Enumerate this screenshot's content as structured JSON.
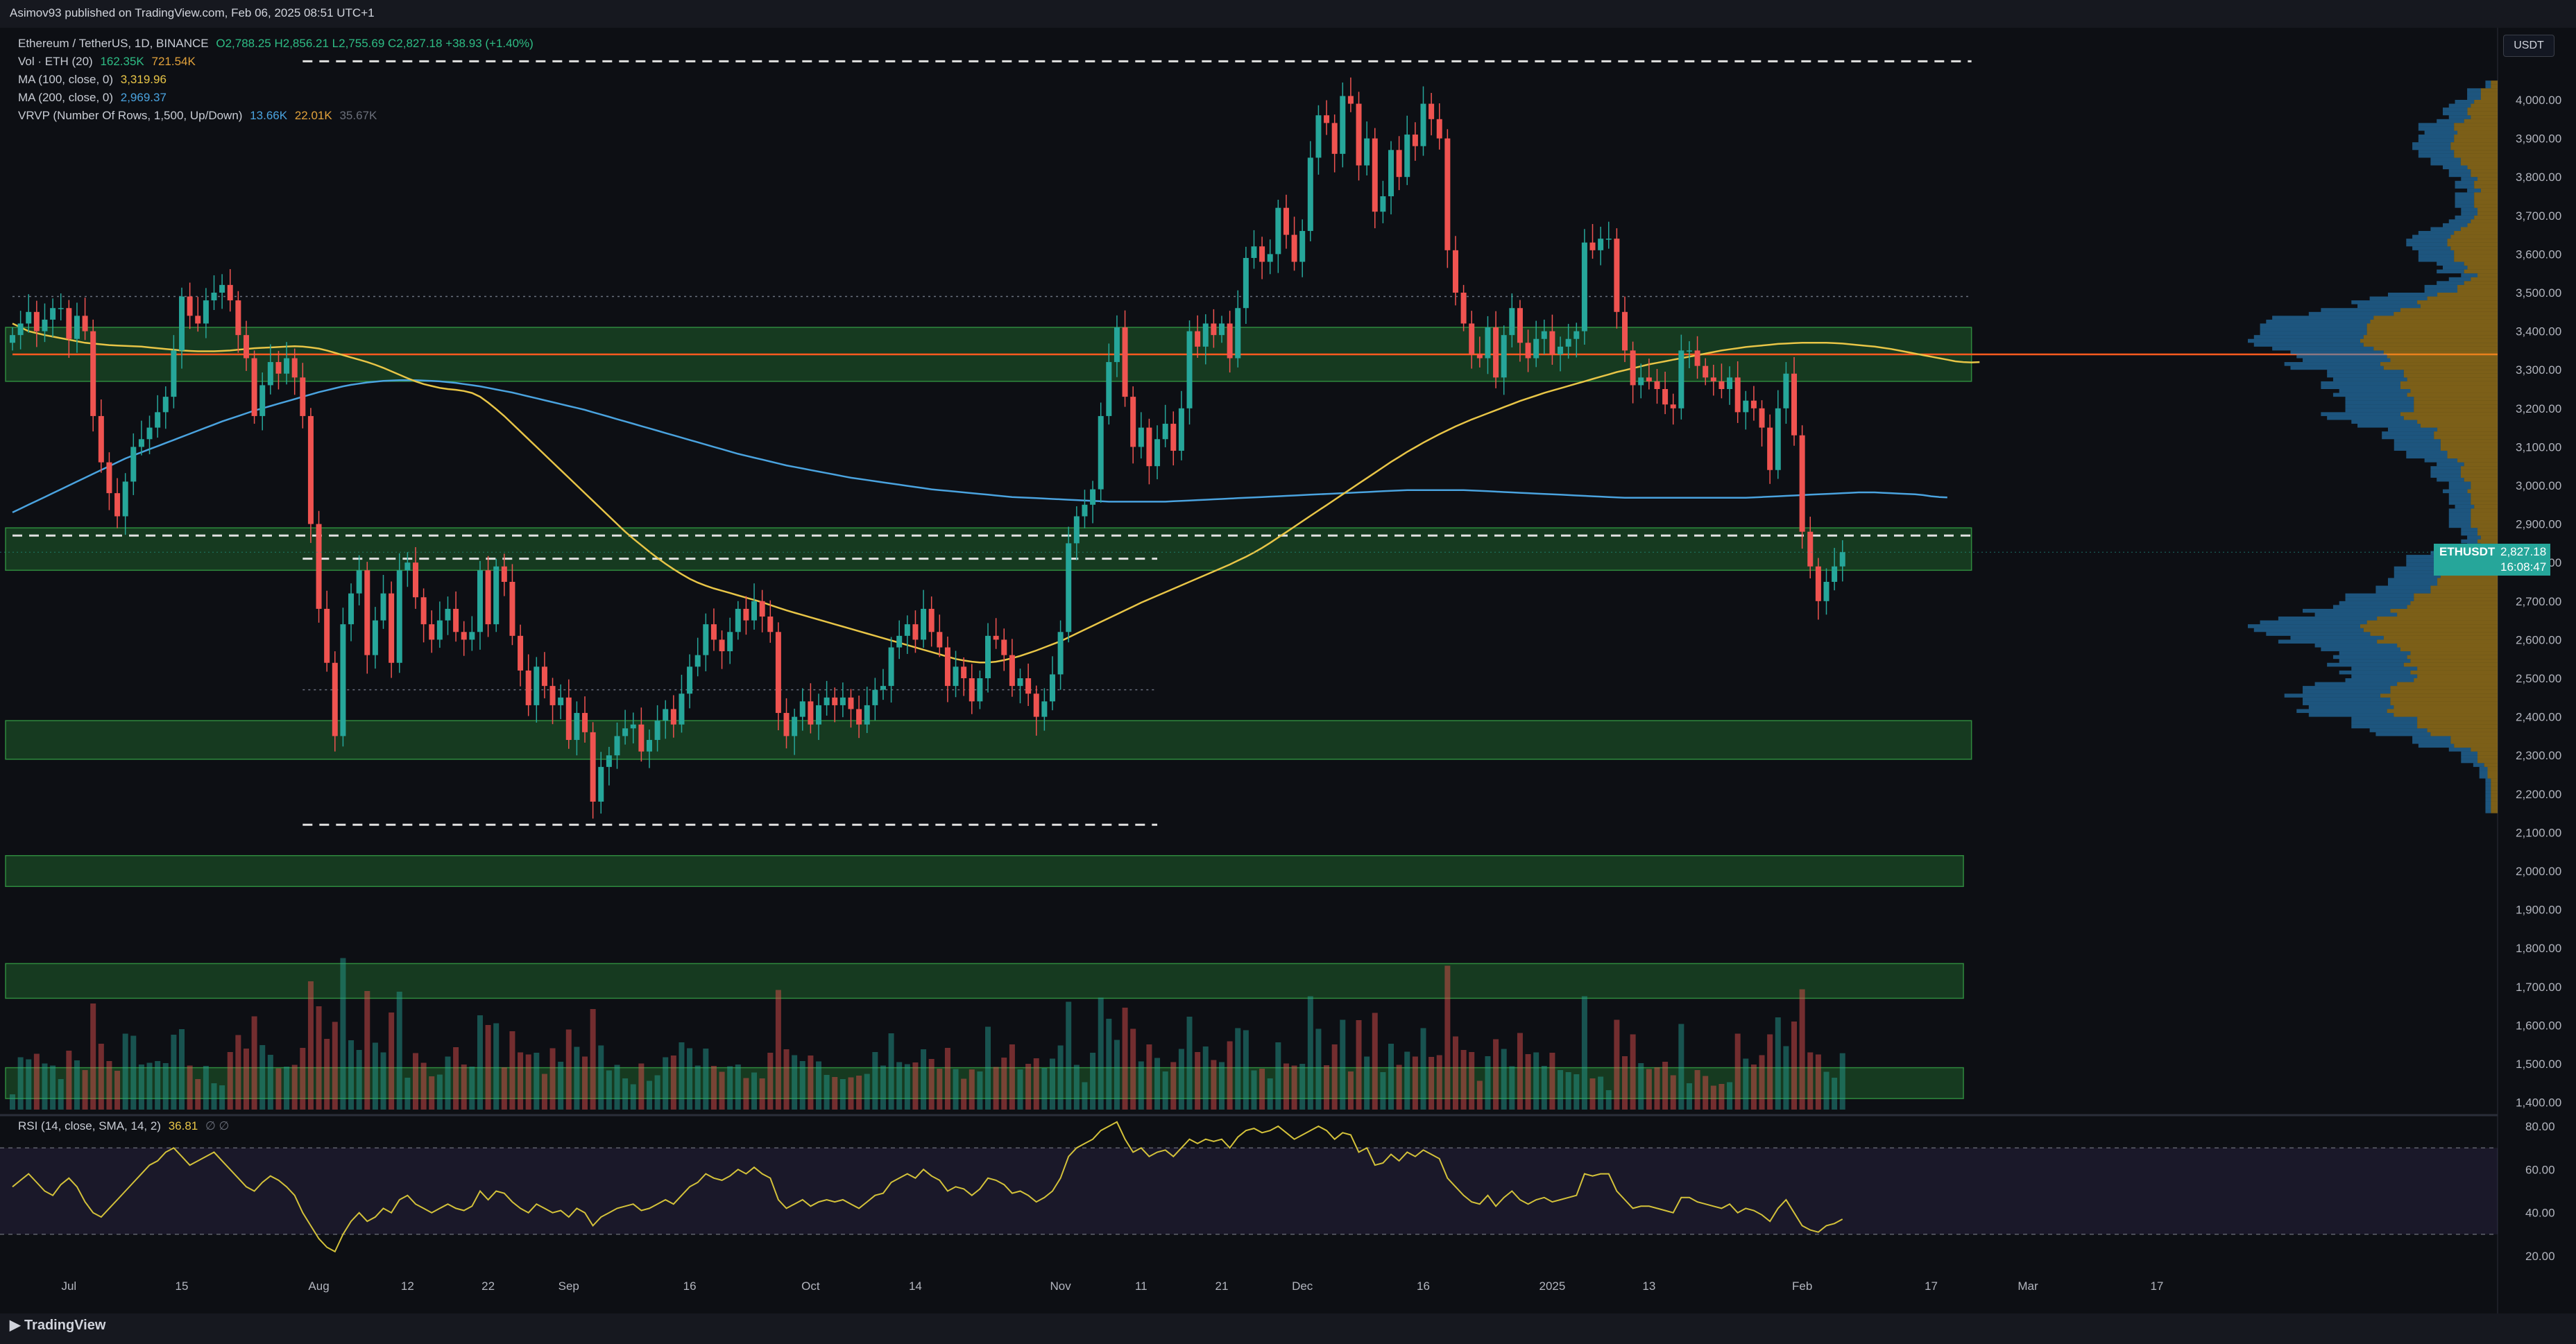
{
  "header": {
    "published": "Asimov93 published on TradingView.com, Feb 06, 2025 08:51 UTC+1"
  },
  "legend": {
    "symbol": "Ethereum / TetherUS, 1D, BINANCE",
    "ohlc": "O2,788.25 H2,856.21 L2,755.69 C2,827.18 +38.93 (+1.40%)",
    "vol_label": "Vol · ETH (20)",
    "vol_val1": "162.35K",
    "vol_val2": "721.54K",
    "ma100_label": "MA (100, close, 0)",
    "ma100_val": "3,319.96",
    "ma200_label": "MA (200, close, 0)",
    "ma200_val": "2,969.37",
    "vrvp_label": "VRVP (Number Of Rows, 1,500, Up/Down)",
    "vrvp_v1": "13.66K",
    "vrvp_v2": "22.01K",
    "vrvp_v3": "35.67K"
  },
  "rsi_legend": {
    "label": "RSI (14, close, SMA, 14, 2)",
    "value": "36.81",
    "extra": "∅ ∅"
  },
  "currency": "USDT",
  "price_tag": {
    "symbol": "ETHUSDT",
    "price": "2,827.18",
    "countdown": "16:08:47"
  },
  "footer": {
    "brand": "TradingView"
  },
  "colors": {
    "up": "#26a69a",
    "down": "#ef5350",
    "ma100": "#e8c547",
    "ma200": "#4aa3df",
    "zone": "#1f5e2a",
    "poc": "#ff5a1f",
    "rsi": "#d4c23a",
    "vp_up": "#2b8fd6",
    "vp_down": "#d9a21b"
  },
  "chart_data": {
    "type": "candlestick",
    "x_ticks": [
      {
        "label": "Jul",
        "day": 7
      },
      {
        "label": "15",
        "day": 21
      },
      {
        "label": "Aug",
        "day": 38
      },
      {
        "label": "12",
        "day": 49
      },
      {
        "label": "22",
        "day": 59
      },
      {
        "label": "Sep",
        "day": 69
      },
      {
        "label": "16",
        "day": 84
      },
      {
        "label": "Oct",
        "day": 99
      },
      {
        "label": "14",
        "day": 112
      },
      {
        "label": "Nov",
        "day": 130
      },
      {
        "label": "11",
        "day": 140
      },
      {
        "label": "21",
        "day": 150
      },
      {
        "label": "Dec",
        "day": 160
      },
      {
        "label": "16",
        "day": 175
      },
      {
        "label": "2025",
        "day": 191
      },
      {
        "label": "13",
        "day": 203
      },
      {
        "label": "Feb",
        "day": 222
      },
      {
        "label": "17",
        "day": 238
      },
      {
        "label": "Mar",
        "day": 250
      },
      {
        "label": "17",
        "day": 266
      }
    ],
    "price_ticks": [
      "4,000.00",
      "3,900.00",
      "3,800.00",
      "3,700.00",
      "3,600.00",
      "3,500.00",
      "3,400.00",
      "3,300.00",
      "3,200.00",
      "3,100.00",
      "3,000.00",
      "2,900.00",
      "2,800.00",
      "2,700.00",
      "2,600.00",
      "2,500.00",
      "2,400.00",
      "2,300.00",
      "2,200.00",
      "2,100.00",
      "2,000.00",
      "1,900.00",
      "1,800.00",
      "1,700.00",
      "1,600.00",
      "1,500.00",
      "1,400.00"
    ],
    "price_tick_values": [
      4000,
      3900,
      3800,
      3700,
      3600,
      3500,
      3400,
      3300,
      3200,
      3100,
      3000,
      2900,
      2800,
      2700,
      2600,
      2500,
      2400,
      2300,
      2200,
      2100,
      2000,
      1900,
      1800,
      1700,
      1600,
      1500,
      1400
    ],
    "rsi_ticks": [
      "80.00",
      "60.00",
      "40.00",
      "20.00"
    ],
    "rsi_tick_values": [
      80,
      60,
      40,
      20
    ],
    "rsi_bands": [
      70,
      30
    ],
    "zones": [
      {
        "low": 3270,
        "high": 3410,
        "end_day": 243
      },
      {
        "low": 2780,
        "high": 2890,
        "end_day": 243
      },
      {
        "low": 2290,
        "high": 2390,
        "end_day": 243
      },
      {
        "low": 1960,
        "high": 2040,
        "end_day": 242
      },
      {
        "low": 1670,
        "high": 1760,
        "end_day": 242
      },
      {
        "low": 1410,
        "high": 1490,
        "end_day": 242
      }
    ],
    "levels": [
      {
        "price": 4100,
        "start_day": 36,
        "end_day": 243,
        "style": "dashed-white"
      },
      {
        "price": 2870,
        "start_day": 0,
        "end_day": 243,
        "style": "dashed-white"
      },
      {
        "price": 2810,
        "start_day": 36,
        "end_day": 142,
        "style": "dashed-white"
      },
      {
        "price": 2120,
        "start_day": 36,
        "end_day": 142,
        "style": "dashed-white"
      },
      {
        "price": 3490,
        "start_day": 0,
        "end_day": 243,
        "style": "dotted-grey"
      },
      {
        "price": 2470,
        "start_day": 36,
        "end_day": 142,
        "style": "dotted-grey"
      },
      {
        "price": 3340,
        "start_day": 0,
        "end_day": 243,
        "style": "poc"
      }
    ],
    "close": [
      3390,
      3420,
      3450,
      3400,
      3430,
      3460,
      3460,
      3380,
      3440,
      3400,
      3180,
      3060,
      2980,
      2920,
      3010,
      3100,
      3120,
      3150,
      3190,
      3230,
      3350,
      3490,
      3440,
      3420,
      3480,
      3500,
      3520,
      3480,
      3390,
      3330,
      3180,
      3260,
      3320,
      3290,
      3330,
      3280,
      3180,
      2900,
      2680,
      2540,
      2350,
      2640,
      2720,
      2780,
      2560,
      2650,
      2720,
      2540,
      2780,
      2800,
      2710,
      2640,
      2600,
      2650,
      2680,
      2620,
      2600,
      2620,
      2780,
      2640,
      2790,
      2750,
      2610,
      2520,
      2430,
      2530,
      2480,
      2430,
      2450,
      2340,
      2410,
      2360,
      2180,
      2270,
      2300,
      2350,
      2370,
      2380,
      2310,
      2340,
      2390,
      2420,
      2380,
      2460,
      2530,
      2560,
      2640,
      2600,
      2570,
      2620,
      2680,
      2650,
      2700,
      2660,
      2620,
      2410,
      2350,
      2400,
      2440,
      2380,
      2430,
      2450,
      2430,
      2450,
      2420,
      2380,
      2430,
      2470,
      2480,
      2580,
      2610,
      2640,
      2600,
      2680,
      2620,
      2580,
      2480,
      2530,
      2500,
      2440,
      2500,
      2610,
      2600,
      2560,
      2480,
      2500,
      2460,
      2400,
      2440,
      2510,
      2620,
      2850,
      2920,
      2950,
      2990,
      3180,
      3320,
      3410,
      3230,
      3100,
      3150,
      3050,
      3120,
      3160,
      3090,
      3200,
      3400,
      3360,
      3420,
      3390,
      3420,
      3330,
      3460,
      3590,
      3620,
      3580,
      3600,
      3720,
      3650,
      3580,
      3660,
      3850,
      3960,
      3940,
      3860,
      4010,
      3990,
      3830,
      3900,
      3710,
      3750,
      3870,
      3800,
      3910,
      3880,
      3990,
      3950,
      3900,
      3610,
      3500,
      3420,
      3340,
      3330,
      3410,
      3280,
      3390,
      3460,
      3370,
      3330,
      3380,
      3400,
      3340,
      3360,
      3380,
      3400,
      3630,
      3610,
      3640,
      3640,
      3450,
      3350,
      3260,
      3280,
      3270,
      3250,
      3210,
      3200,
      3350,
      3350,
      3310,
      3280,
      3270,
      3250,
      3280,
      3190,
      3220,
      3200,
      3150,
      3040,
      3200,
      3290,
      3130,
      2880,
      2790,
      2700,
      2750,
      2790,
      2827
    ],
    "ma100": [
      3420,
      3410,
      3400,
      3395,
      3390,
      3386,
      3382,
      3378,
      3374,
      3370,
      3368,
      3366,
      3364,
      3363,
      3362,
      3361,
      3360,
      3358,
      3356,
      3354,
      3352,
      3350,
      3349,
      3348,
      3348,
      3348,
      3349,
      3350,
      3352,
      3354,
      3356,
      3357,
      3358,
      3359,
      3360,
      3361,
      3360,
      3358,
      3355,
      3350,
      3344,
      3338,
      3332,
      3326,
      3320,
      3313,
      3305,
      3296,
      3287,
      3278,
      3270,
      3263,
      3258,
      3253,
      3250,
      3248,
      3245,
      3240,
      3230,
      3215,
      3198,
      3180,
      3160,
      3140,
      3120,
      3100,
      3080,
      3060,
      3040,
      3020,
      3000,
      2980,
      2960,
      2940,
      2920,
      2900,
      2880,
      2862,
      2845,
      2828,
      2812,
      2797,
      2783,
      2770,
      2758,
      2748,
      2740,
      2733,
      2727,
      2721,
      2715,
      2709,
      2703,
      2697,
      2690,
      2683,
      2676,
      2670,
      2664,
      2658,
      2652,
      2646,
      2640,
      2634,
      2628,
      2622,
      2616,
      2610,
      2604,
      2598,
      2592,
      2586,
      2580,
      2574,
      2568,
      2562,
      2556,
      2550,
      2546,
      2543,
      2541,
      2541,
      2543,
      2547,
      2552,
      2558,
      2565,
      2572,
      2580,
      2588,
      2596,
      2606,
      2616,
      2626,
      2636,
      2646,
      2656,
      2666,
      2676,
      2686,
      2696,
      2705,
      2714,
      2723,
      2732,
      2741,
      2750,
      2759,
      2768,
      2777,
      2786,
      2795,
      2805,
      2815,
      2826,
      2838,
      2851,
      2865,
      2879,
      2893,
      2907,
      2921,
      2935,
      2949,
      2963,
      2977,
      2991,
      3005,
      3019,
      3033,
      3047,
      3061,
      3074,
      3087,
      3099,
      3111,
      3122,
      3133,
      3143,
      3153,
      3162,
      3171,
      3179,
      3187,
      3195,
      3203,
      3211,
      3219,
      3226,
      3233,
      3240,
      3246,
      3252,
      3258,
      3264,
      3270,
      3276,
      3282,
      3288,
      3294,
      3299,
      3304,
      3309,
      3314,
      3318,
      3322,
      3326,
      3330,
      3334,
      3338,
      3342,
      3346,
      3350,
      3353,
      3356,
      3359,
      3361,
      3363,
      3365,
      3367,
      3368,
      3369,
      3370,
      3370,
      3370,
      3370,
      3369,
      3368,
      3366,
      3364,
      3362,
      3360,
      3357,
      3354,
      3350,
      3346,
      3342,
      3338,
      3334,
      3330,
      3326,
      3322,
      3320,
      3319,
      3320
    ],
    "ma200": [
      2930,
      2940,
      2950,
      2960,
      2970,
      2980,
      2990,
      3000,
      3010,
      3020,
      3030,
      3040,
      3050,
      3060,
      3070,
      3078,
      3086,
      3094,
      3102,
      3110,
      3118,
      3126,
      3134,
      3142,
      3150,
      3158,
      3166,
      3173,
      3180,
      3187,
      3194,
      3200,
      3206,
      3212,
      3218,
      3224,
      3230,
      3236,
      3242,
      3247,
      3252,
      3257,
      3261,
      3264,
      3267,
      3269,
      3271,
      3272,
      3273,
      3273,
      3273,
      3272,
      3271,
      3270,
      3268,
      3266,
      3263,
      3260,
      3257,
      3253,
      3249,
      3245,
      3241,
      3236,
      3231,
      3226,
      3221,
      3216,
      3211,
      3206,
      3201,
      3196,
      3190,
      3184,
      3178,
      3172,
      3166,
      3160,
      3154,
      3148,
      3142,
      3136,
      3130,
      3124,
      3118,
      3112,
      3106,
      3100,
      3094,
      3088,
      3082,
      3077,
      3072,
      3067,
      3062,
      3057,
      3052,
      3048,
      3044,
      3040,
      3036,
      3032,
      3028,
      3024,
      3020,
      3017,
      3014,
      3011,
      3008,
      3005,
      3002,
      2999,
      2996,
      2993,
      2990,
      2988,
      2986,
      2984,
      2982,
      2980,
      2978,
      2976,
      2974,
      2972,
      2970,
      2969,
      2968,
      2967,
      2966,
      2965,
      2964,
      2963,
      2962,
      2961,
      2960,
      2959,
      2958,
      2958,
      2958,
      2958,
      2958,
      2958,
      2958,
      2958,
      2959,
      2960,
      2961,
      2962,
      2963,
      2964,
      2965,
      2966,
      2967,
      2968,
      2969,
      2970,
      2971,
      2972,
      2973,
      2974,
      2975,
      2976,
      2977,
      2978,
      2979,
      2980,
      2981,
      2982,
      2983,
      2984,
      2985,
      2986,
      2987,
      2988,
      2988,
      2988,
      2988,
      2988,
      2988,
      2988,
      2988,
      2987,
      2986,
      2985,
      2984,
      2983,
      2982,
      2981,
      2980,
      2979,
      2978,
      2977,
      2976,
      2975,
      2974,
      2973,
      2972,
      2971,
      2970,
      2969,
      2968,
      2968,
      2968,
      2968,
      2968,
      2968,
      2968,
      2968,
      2968,
      2968,
      2968,
      2968,
      2968,
      2968,
      2968,
      2968,
      2969,
      2970,
      2971,
      2972,
      2973,
      2974,
      2975,
      2976,
      2977,
      2978,
      2979,
      2980,
      2981,
      2982,
      2982,
      2982,
      2981,
      2980,
      2979,
      2978,
      2977,
      2975,
      2972,
      2970,
      2969
    ],
    "rsi_start_day": 0,
    "rsi": [
      52,
      55,
      58,
      54,
      50,
      48,
      53,
      56,
      52,
      45,
      40,
      38,
      42,
      46,
      50,
      54,
      58,
      62,
      64,
      68,
      70,
      66,
      62,
      64,
      66,
      68,
      64,
      60,
      56,
      52,
      50,
      54,
      57,
      55,
      52,
      48,
      40,
      34,
      28,
      24,
      22,
      30,
      36,
      40,
      36,
      38,
      42,
      40,
      46,
      48,
      44,
      42,
      40,
      42,
      44,
      42,
      41,
      43,
      50,
      46,
      50,
      49,
      45,
      42,
      40,
      44,
      42,
      40,
      41,
      38,
      42,
      40,
      34,
      38,
      40,
      42,
      43,
      44,
      41,
      42,
      44,
      46,
      44,
      48,
      52,
      54,
      58,
      56,
      55,
      57,
      60,
      58,
      61,
      58,
      56,
      46,
      42,
      44,
      46,
      43,
      45,
      46,
      45,
      46,
      44,
      42,
      45,
      48,
      49,
      54,
      56,
      58,
      56,
      60,
      57,
      55,
      50,
      52,
      51,
      48,
      51,
      56,
      55,
      53,
      49,
      50,
      48,
      45,
      47,
      50,
      56,
      66,
      70,
      72,
      74,
      78,
      80,
      82,
      74,
      68,
      70,
      66,
      68,
      69,
      66,
      70,
      74,
      72,
      74,
      73,
      74,
      70,
      75,
      78,
      79,
      77,
      78,
      80,
      77,
      74,
      76,
      78,
      80,
      78,
      74,
      77,
      76,
      68,
      70,
      62,
      63,
      67,
      64,
      68,
      66,
      69,
      67,
      65,
      56,
      52,
      48,
      45,
      44,
      48,
      43,
      47,
      50,
      46,
      44,
      46,
      47,
      45,
      46,
      47,
      48,
      58,
      57,
      58,
      58,
      50,
      46,
      42,
      43,
      43,
      42,
      41,
      40,
      47,
      47,
      45,
      44,
      43,
      42,
      44,
      40,
      42,
      41,
      39,
      36,
      42,
      46,
      40,
      34,
      32,
      31,
      34,
      35,
      37
    ]
  }
}
